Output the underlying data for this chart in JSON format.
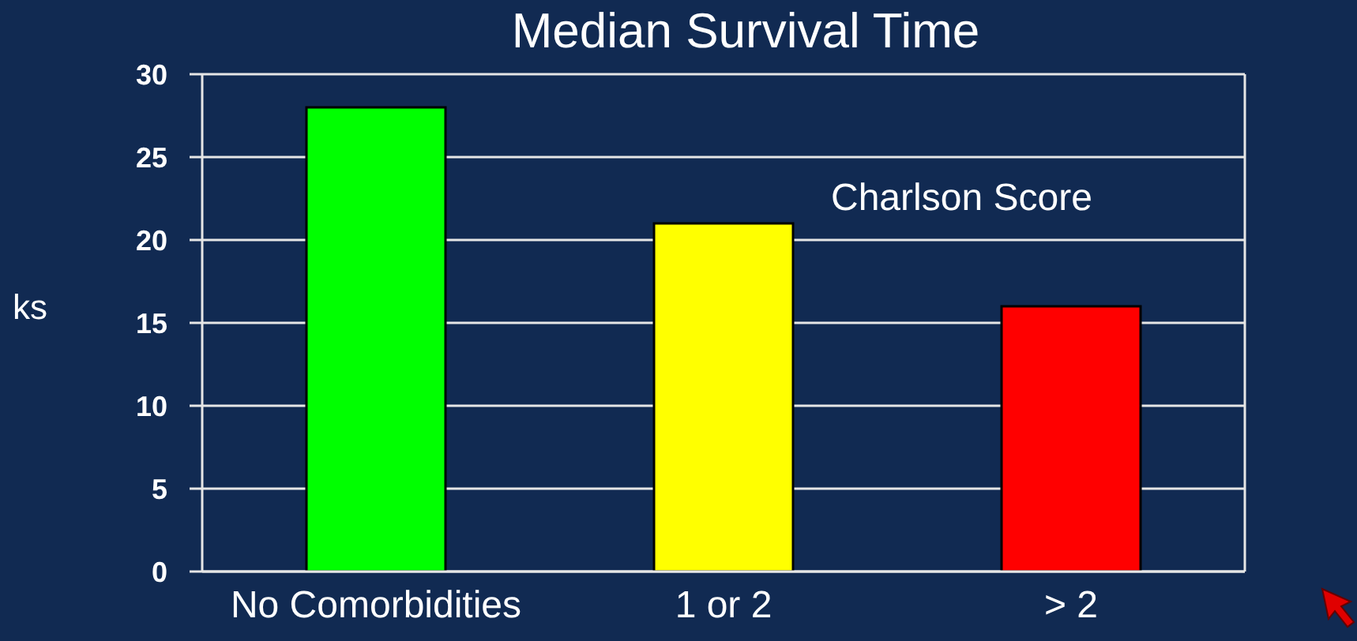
{
  "chart_data": {
    "type": "bar",
    "title": "Median Survival Time",
    "ylabel": "ks",
    "annotations": [
      "Charlson Score"
    ],
    "categories": [
      "No Comorbidities",
      "1 or 2",
      "> 2"
    ],
    "values": [
      28,
      21,
      16
    ],
    "colors": [
      "#00ff00",
      "#ffff00",
      "#ff0000"
    ],
    "ylim": [
      0,
      30
    ],
    "yticks": [
      0,
      5,
      10,
      15,
      20,
      25,
      30
    ],
    "grid": "y"
  }
}
